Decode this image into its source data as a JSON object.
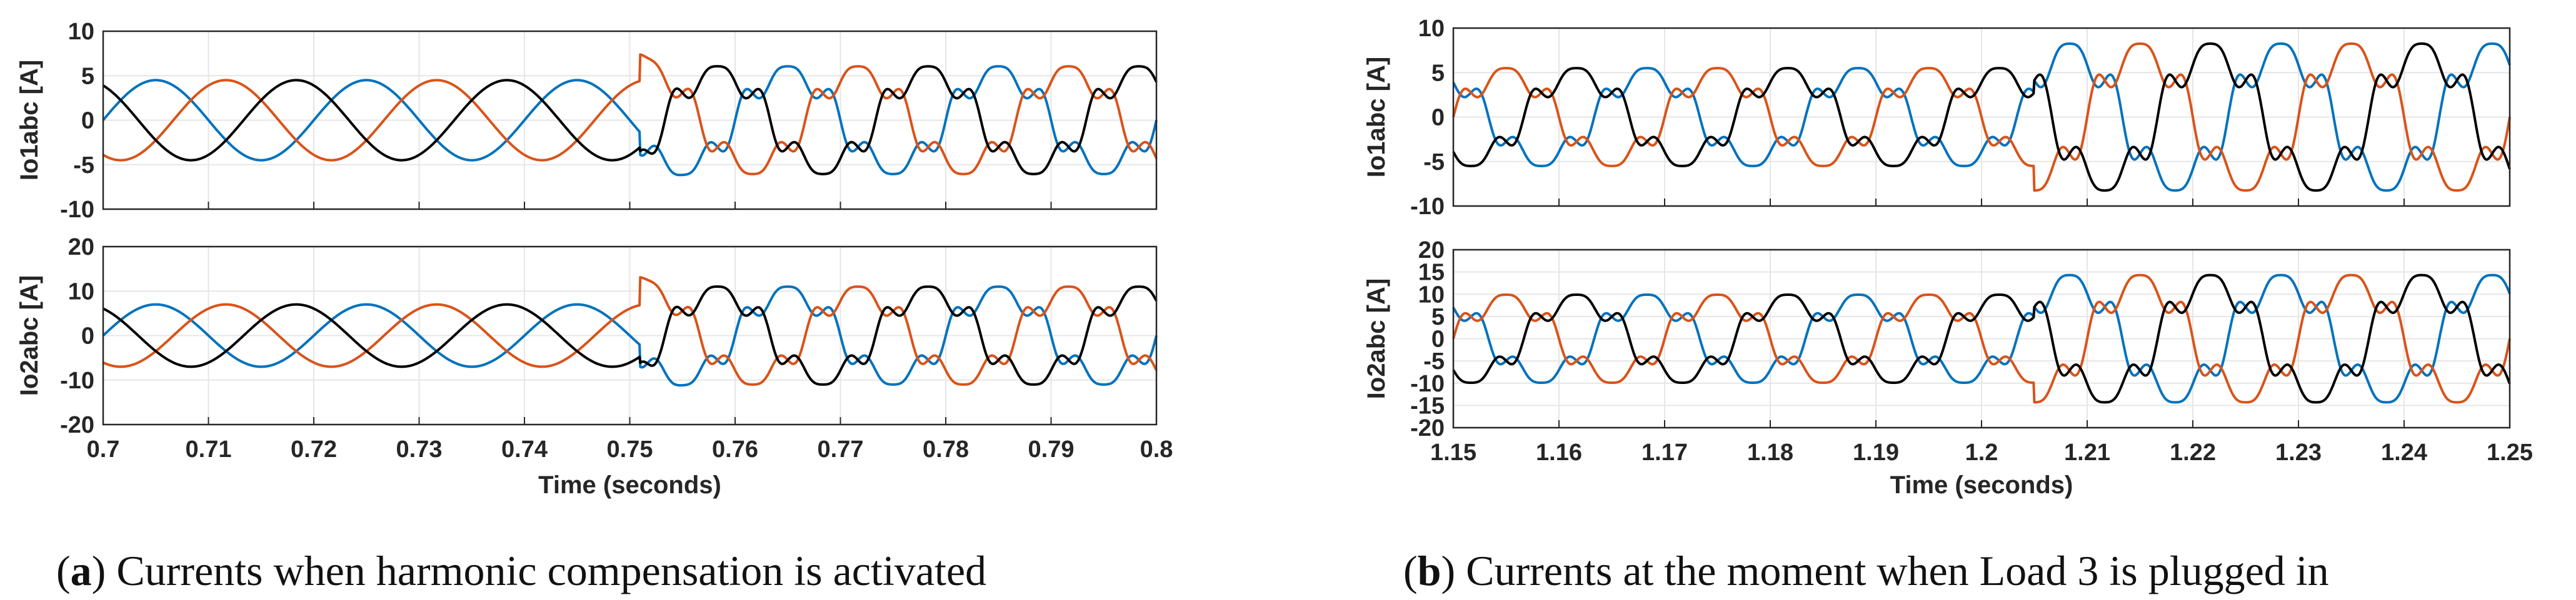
{
  "colors": {
    "phase_a": "#0072BD",
    "phase_b": "#D95319",
    "phase_c": "#000000",
    "grid": "#e6e6e6",
    "axis": "#262626"
  },
  "chart_data": [
    {
      "type": "line",
      "panel": "a",
      "ylabel": "Io1abc [A]",
      "xlabel": "",
      "xlim": [
        0.7,
        0.8
      ],
      "ylim": [
        -10,
        10
      ],
      "yticks": [
        "10",
        "5",
        "0",
        "-5",
        "-10"
      ],
      "xticks": [],
      "grid": true,
      "frequency_hz": 50,
      "event_time": 0.751,
      "before": {
        "amplitude": 4.5,
        "distortion": "none"
      },
      "after": {
        "amplitude": 5.5,
        "distortion": "5th and 7th harmonics",
        "peak": 8
      },
      "series": [
        {
          "name": "Phase a",
          "color": "#0072BD",
          "phase_deg": 0
        },
        {
          "name": "Phase b",
          "color": "#D95319",
          "phase_deg": -120
        },
        {
          "name": "Phase c",
          "color": "#000000",
          "phase_deg": 120
        }
      ]
    },
    {
      "type": "line",
      "panel": "a",
      "ylabel": "Io2abc [A]",
      "xlabel": "Time (seconds)",
      "xlim": [
        0.7,
        0.8
      ],
      "ylim": [
        -20,
        20
      ],
      "yticks": [
        "20",
        "10",
        "0",
        "-10",
        "-20"
      ],
      "xticks": [
        "0.7",
        "0.71",
        "0.72",
        "0.73",
        "0.74",
        "0.75",
        "0.76",
        "0.77",
        "0.78",
        "0.79",
        "0.8"
      ],
      "grid": true,
      "frequency_hz": 50,
      "event_time": 0.751,
      "before": {
        "amplitude": 7,
        "distortion": "none"
      },
      "after": {
        "amplitude": 10,
        "distortion": "5th and 7th harmonics",
        "peak": 14
      },
      "series": [
        {
          "name": "Phase a",
          "color": "#0072BD",
          "phase_deg": 0
        },
        {
          "name": "Phase b",
          "color": "#D95319",
          "phase_deg": -120
        },
        {
          "name": "Phase c",
          "color": "#000000",
          "phase_deg": 120
        }
      ]
    },
    {
      "type": "line",
      "panel": "b",
      "ylabel": "Io1abc [A]",
      "xlabel": "",
      "xlim": [
        1.15,
        1.25
      ],
      "ylim": [
        -10,
        10
      ],
      "yticks": [
        "10",
        "5",
        "0",
        "-5",
        "-10"
      ],
      "xticks": [],
      "grid": true,
      "frequency_hz": 50,
      "event_time": 1.205,
      "before": {
        "amplitude": 5,
        "distortion": "5th and 7th harmonics"
      },
      "after": {
        "amplitude": 7.5,
        "distortion": "5th and 7th harmonics",
        "peak": 8
      },
      "series": [
        {
          "name": "Phase a",
          "color": "#0072BD",
          "phase_deg": -60
        },
        {
          "name": "Phase b",
          "color": "#D95319",
          "phase_deg": 180
        },
        {
          "name": "Phase c",
          "color": "#000000",
          "phase_deg": 60
        }
      ]
    },
    {
      "type": "line",
      "panel": "b",
      "ylabel": "Io2abc [A]",
      "xlabel": "Time (seconds)",
      "xlim": [
        1.15,
        1.25
      ],
      "ylim": [
        -20,
        20
      ],
      "yticks": [
        "20",
        "15",
        "10",
        "5",
        "0",
        "-5",
        "-10",
        "-15",
        "-20"
      ],
      "xticks": [
        "1.15",
        "1.16",
        "1.17",
        "1.18",
        "1.19",
        "1.2",
        "1.21",
        "1.22",
        "1.23",
        "1.24",
        "1.25"
      ],
      "grid": true,
      "frequency_hz": 50,
      "event_time": 1.205,
      "before": {
        "amplitude": 9,
        "distortion": "5th and 7th harmonics"
      },
      "after": {
        "amplitude": 13,
        "distortion": "5th and 7th harmonics",
        "peak": 14
      },
      "series": [
        {
          "name": "Phase a",
          "color": "#0072BD",
          "phase_deg": -60
        },
        {
          "name": "Phase b",
          "color": "#D95319",
          "phase_deg": 180
        },
        {
          "name": "Phase c",
          "color": "#000000",
          "phase_deg": 60
        }
      ]
    }
  ],
  "captions": [
    {
      "label": "a",
      "text": "Currents when harmonic compensation is activated"
    },
    {
      "label": "b",
      "text": "Currents at the moment when Load 3 is plugged in"
    }
  ]
}
